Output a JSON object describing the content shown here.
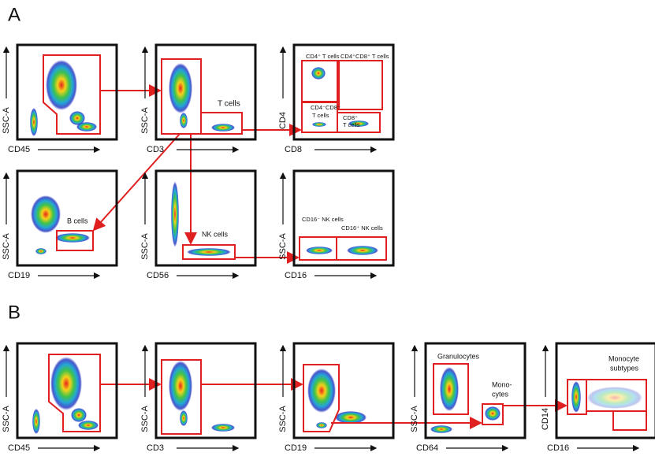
{
  "panels": [
    {
      "label": "A",
      "plots": [
        {
          "x_axis": "CD45",
          "y_axis": "SSC-A"
        },
        {
          "x_axis": "CD3",
          "y_axis": "SSC-A",
          "gate_labels": [
            "T cells"
          ]
        },
        {
          "x_axis": "CD8",
          "y_axis": "CD4",
          "gate_labels": [
            "CD4⁺ T cells",
            "CD4⁺CD8⁺ T cells",
            "CD4⁻CD8⁻",
            "T cells",
            "CD8⁺",
            "T cells"
          ]
        },
        {
          "x_axis": "CD19",
          "y_axis": "SSC-A",
          "gate_labels": [
            "B cells"
          ]
        },
        {
          "x_axis": "CD56",
          "y_axis": "SSC-A",
          "gate_labels": [
            "NK cells"
          ]
        },
        {
          "x_axis": "CD16",
          "y_axis": "SSC-A",
          "gate_labels": [
            "CD16⁻ NK cells",
            "CD16⁺ NK cells"
          ]
        }
      ]
    },
    {
      "label": "B",
      "plots": [
        {
          "x_axis": "CD45",
          "y_axis": "SSC-A"
        },
        {
          "x_axis": "CD3",
          "y_axis": "SSC-A"
        },
        {
          "x_axis": "CD19",
          "y_axis": "SSC-A"
        },
        {
          "x_axis": "CD64",
          "y_axis": "SSC-A",
          "gate_labels": [
            "Granulocytes",
            "Mono-",
            "cytes"
          ]
        },
        {
          "x_axis": "CD16",
          "y_axis": "CD14",
          "gate_labels": [
            "Monocyte",
            "subtypes"
          ]
        }
      ]
    }
  ]
}
